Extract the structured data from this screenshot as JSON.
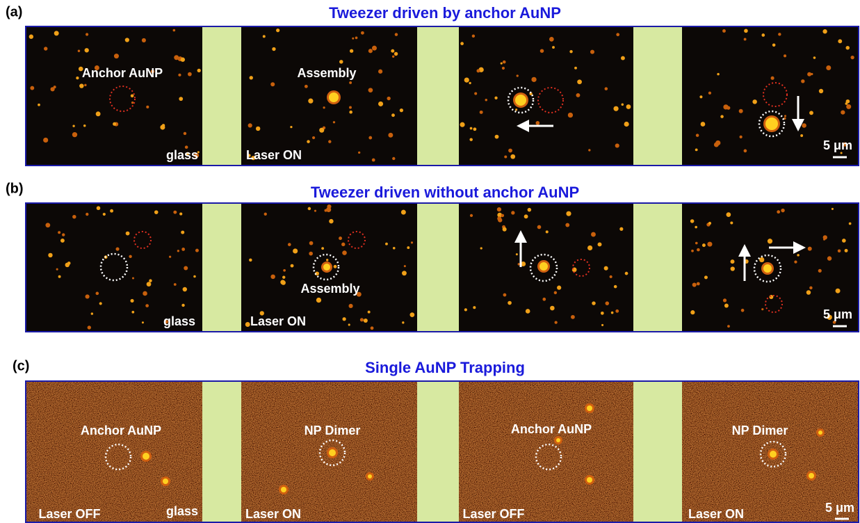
{
  "panels": [
    {
      "label": "(a)",
      "title": "Tweezer driven by anchor AuNP",
      "annotations": [
        "Anchor AuNP",
        "glass",
        "Assembly",
        "Laser ON",
        "5 μm"
      ]
    },
    {
      "label": "(b)",
      "title": "Tweezer driven without anchor AuNP",
      "annotations": [
        "glass",
        "Assembly",
        "Laser ON",
        "5 μm"
      ]
    },
    {
      "label": "(c)",
      "title": "Single AuNP Trapping",
      "annotations": [
        "Anchor AuNP",
        "Laser OFF",
        "glass",
        "NP Dimer",
        "Laser ON",
        "Anchor AuNP",
        "Laser OFF",
        "NP Dimer",
        "Laser ON",
        "5 μm"
      ]
    }
  ]
}
